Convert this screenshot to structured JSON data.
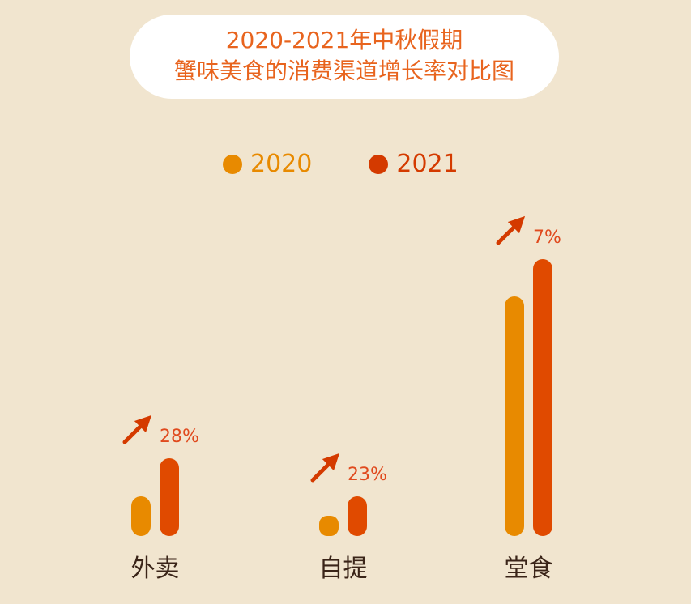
{
  "chart_data": {
    "type": "bar",
    "title": "2020-2021年中秋假期",
    "subtitle": "蟹味美食的消费渠道增长率对比图",
    "categories": [
      "外卖",
      "自提",
      "堂食"
    ],
    "series": [
      {
        "name": "2020",
        "color": "#E88A00",
        "values": [
          49,
          25,
          296
        ]
      },
      {
        "name": "2021",
        "color": "#E04A00",
        "values": [
          96,
          49,
          342
        ]
      }
    ],
    "growth_labels": [
      "28%",
      "23%",
      "7%"
    ],
    "value_scale": "relative (no axis printed)",
    "legend_placement": "top-center",
    "grid": false,
    "colors": {
      "title": "#E8641E",
      "category_text": "#3A2418",
      "arrow": "#D43A00",
      "background": "#F1E5CF"
    }
  }
}
